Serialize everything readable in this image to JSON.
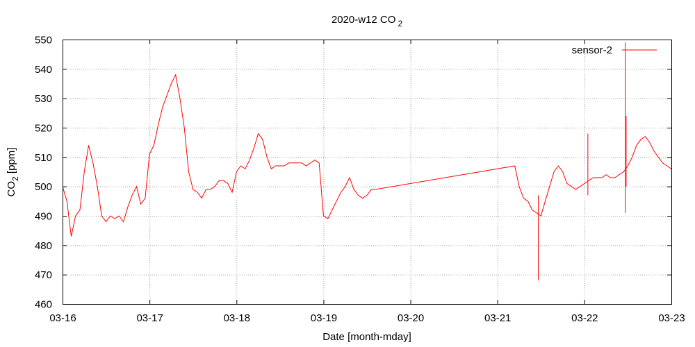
{
  "chart_data": {
    "type": "line",
    "title": {
      "text": "2020-w12 CO",
      "subscript": "2"
    },
    "xlabel": "Date [month-mday]",
    "ylabel": {
      "prefix": "CO",
      "subscript": "2",
      "suffix": " [ppm]"
    },
    "x_ticks": [
      "03-16",
      "03-17",
      "03-18",
      "03-19",
      "03-20",
      "03-21",
      "03-22",
      "03-23"
    ],
    "xlim": [
      "03-16",
      "03-23"
    ],
    "ylim": [
      460,
      550
    ],
    "y_ticks": [
      460,
      470,
      480,
      490,
      500,
      510,
      520,
      530,
      540,
      550
    ],
    "grid": true,
    "legend_position": "top-right",
    "series": [
      {
        "name": "sensor-2",
        "color": "#ff0000",
        "x_unit": "days since 03-16 00:00",
        "x": [
          0.0,
          0.05,
          0.1,
          0.15,
          0.2,
          0.25,
          0.3,
          0.35,
          0.4,
          0.45,
          0.5,
          0.55,
          0.6,
          0.65,
          0.7,
          0.75,
          0.8,
          0.85,
          0.9,
          0.95,
          1.0,
          1.05,
          1.1,
          1.15,
          1.2,
          1.25,
          1.3,
          1.35,
          1.4,
          1.45,
          1.5,
          1.55,
          1.6,
          1.65,
          1.7,
          1.75,
          1.8,
          1.85,
          1.9,
          1.95,
          2.0,
          2.05,
          2.1,
          2.15,
          2.2,
          2.25,
          2.3,
          2.35,
          2.4,
          2.45,
          2.5,
          2.55,
          2.6,
          2.65,
          2.7,
          2.75,
          2.8,
          2.85,
          2.9,
          2.95,
          3.0,
          3.05,
          3.1,
          3.15,
          3.2,
          3.25,
          3.3,
          3.35,
          3.4,
          3.45,
          3.5,
          3.55,
          3.6,
          5.2,
          5.25,
          5.3,
          5.35,
          5.4,
          5.45,
          5.5,
          5.55,
          5.6,
          5.65,
          5.7,
          5.75,
          5.8,
          5.85,
          5.9,
          5.95,
          6.0,
          6.05,
          6.1,
          6.15,
          6.2,
          6.25,
          6.3,
          6.35,
          6.4,
          6.45,
          6.5,
          6.55,
          6.6,
          6.65,
          6.7,
          6.75,
          6.8,
          6.85,
          6.9,
          6.95,
          7.0
        ],
        "y": [
          500,
          495,
          483,
          490,
          492,
          505,
          514,
          508,
          500,
          490,
          488,
          490,
          489,
          490,
          488,
          493,
          497,
          500,
          494,
          496,
          511,
          514,
          521,
          527,
          531,
          535,
          538,
          530,
          520,
          505,
          499,
          498,
          496,
          499,
          499,
          500,
          502,
          502,
          501,
          498,
          505,
          507,
          506,
          509,
          513,
          518,
          516,
          510,
          506,
          507,
          507,
          507,
          508,
          508,
          508,
          508,
          507,
          508,
          509,
          508,
          490,
          489,
          492,
          495,
          498,
          500,
          503,
          499,
          497,
          496,
          497,
          499,
          499,
          507,
          500,
          496,
          495,
          492,
          491,
          490,
          495,
          500,
          505,
          507,
          505,
          501,
          500,
          499,
          500,
          501,
          502,
          503,
          503,
          503,
          504,
          503,
          503,
          504,
          505,
          507,
          510,
          514,
          516,
          517,
          515,
          512,
          510,
          508,
          507,
          506
        ]
      }
    ],
    "spikes": [
      {
        "x": 5.47,
        "y_min": 468,
        "y_max": 497
      },
      {
        "x": 6.47,
        "y_min": 491,
        "y_max": 549
      },
      {
        "x": 6.48,
        "y_min": 500,
        "y_max": 524
      },
      {
        "x": 6.04,
        "y_min": 497,
        "y_max": 518
      }
    ]
  }
}
